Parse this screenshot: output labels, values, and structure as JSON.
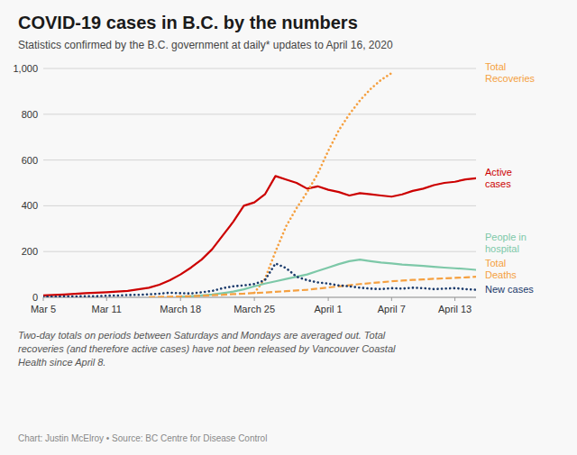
{
  "chart_data": {
    "type": "line",
    "title": "COVID-19 cases in B.C. by the numbers",
    "subtitle": "Statistics confirmed by the B.C. government at daily* updates to April 16, 2020",
    "annotations": [
      "Two-day totals on periods between Saturdays and Mondays are averaged out. Total\nrecoveries (and therefore active cases) have not been released by Vancouver Coastal\nHealth since April 8.",
      "Chart: Justin McElroy • Source: BC Centre for Disease Control"
    ],
    "xlim": [
      0,
      41
    ],
    "xticks": [
      {
        "value": 0,
        "label": "Mar 5"
      },
      {
        "value": 6,
        "label": "Mar 11"
      },
      {
        "value": 13,
        "label": "March 18"
      },
      {
        "value": 20,
        "label": "March 25"
      },
      {
        "value": 27,
        "label": "April 1"
      },
      {
        "value": 33,
        "label": "April 7"
      },
      {
        "value": 39,
        "label": "April 13"
      }
    ],
    "ylim": [
      0,
      1000
    ],
    "yticks": [
      0,
      200,
      400,
      600,
      800,
      {
        "value": 1000,
        "label": "1,000"
      }
    ],
    "grid": true,
    "legend": "right",
    "series": [
      {
        "name": "Active\ncases",
        "color": "#cc0000",
        "line_style": "solid",
        "x": [
          0,
          1,
          2,
          3,
          4,
          5,
          6,
          7,
          8,
          9,
          10,
          11,
          12,
          13,
          14,
          15,
          16,
          17,
          18,
          19,
          20,
          21,
          22,
          23,
          24,
          25,
          26,
          27,
          28,
          29,
          30,
          31,
          32,
          33,
          34,
          35,
          36,
          37,
          38,
          39,
          40,
          41
        ],
        "values": [
          8,
          10,
          12,
          15,
          18,
          20,
          22,
          25,
          28,
          35,
          42,
          55,
          75,
          100,
          130,
          165,
          210,
          270,
          330,
          400,
          415,
          450,
          530,
          515,
          500,
          475,
          485,
          470,
          460,
          445,
          455,
          450,
          445,
          440,
          450,
          465,
          475,
          490,
          500,
          505,
          515,
          520
        ]
      },
      {
        "name": "Total\nRecoveries",
        "color": "#f5a040",
        "line_style": "dotted",
        "x": [
          20,
          21,
          22,
          23,
          24,
          25,
          26,
          27,
          28,
          29,
          30,
          31,
          32,
          33
        ],
        "values": [
          20,
          80,
          200,
          310,
          390,
          460,
          540,
          640,
          730,
          800,
          860,
          910,
          950,
          980
        ]
      },
      {
        "name": "People in\nhospital",
        "color": "#7dc8a8",
        "line_style": "solid",
        "x": [
          13,
          14,
          15,
          16,
          17,
          18,
          19,
          20,
          21,
          22,
          23,
          24,
          25,
          26,
          27,
          28,
          29,
          30,
          31,
          32,
          33,
          34,
          35,
          36,
          37,
          38,
          39,
          40,
          41
        ],
        "values": [
          3,
          5,
          8,
          12,
          18,
          25,
          35,
          48,
          60,
          70,
          80,
          90,
          100,
          115,
          130,
          145,
          158,
          165,
          158,
          152,
          148,
          143,
          140,
          137,
          133,
          130,
          127,
          124,
          120
        ]
      },
      {
        "name": "Total\nDeaths",
        "color": "#f5a040",
        "line_style": "dashed",
        "x": [
          10,
          11,
          12,
          13,
          14,
          15,
          16,
          17,
          18,
          19,
          20,
          21,
          22,
          23,
          24,
          25,
          26,
          27,
          28,
          29,
          30,
          31,
          32,
          33,
          34,
          35,
          36,
          37,
          38,
          39,
          40,
          41
        ],
        "values": [
          1,
          2,
          3,
          4,
          5,
          7,
          9,
          11,
          14,
          16,
          19,
          21,
          24,
          27,
          30,
          33,
          38,
          43,
          48,
          53,
          58,
          62,
          66,
          70,
          73,
          76,
          78,
          81,
          83,
          85,
          87,
          90
        ]
      },
      {
        "name": "New cases",
        "color": "#1a3a6b",
        "line_style": "dotted",
        "x": [
          0,
          1,
          2,
          3,
          4,
          5,
          6,
          7,
          8,
          9,
          10,
          11,
          12,
          13,
          14,
          15,
          16,
          17,
          18,
          19,
          20,
          21,
          22,
          23,
          24,
          25,
          26,
          27,
          28,
          29,
          30,
          31,
          32,
          33,
          34,
          35,
          36,
          37,
          38,
          39,
          40,
          41
        ],
        "values": [
          2,
          3,
          4,
          4,
          5,
          5,
          7,
          8,
          10,
          11,
          13,
          16,
          20,
          18,
          17,
          22,
          28,
          40,
          48,
          52,
          58,
          75,
          148,
          128,
          90,
          75,
          65,
          60,
          52,
          48,
          42,
          38,
          36,
          40,
          38,
          42,
          40,
          36,
          38,
          40,
          36,
          33
        ]
      }
    ]
  }
}
